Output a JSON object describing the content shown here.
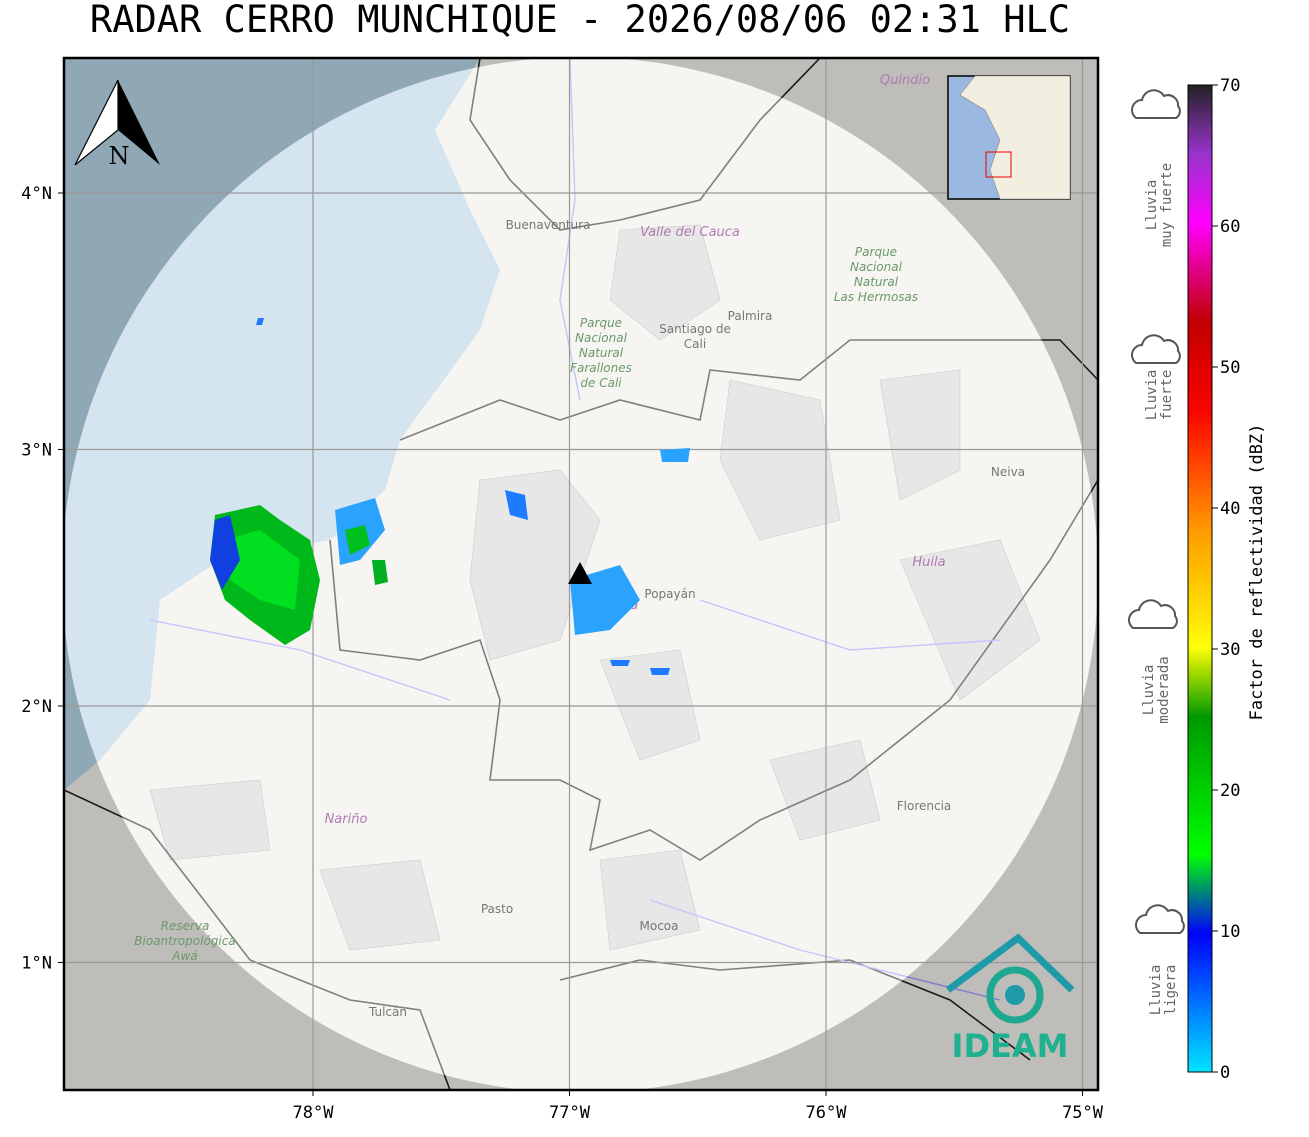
{
  "title": "RADAR CERRO MUNCHIQUE - 2026/08/06 02:31 HLC",
  "map": {
    "lon_ticks": [
      {
        "value": -78,
        "label": "78°W"
      },
      {
        "value": -77,
        "label": "77°W"
      },
      {
        "value": -76,
        "label": "76°W"
      },
      {
        "value": -75,
        "label": "75°W"
      }
    ],
    "lat_ticks": [
      {
        "value": 4,
        "label": "4°N"
      },
      {
        "value": 3,
        "label": "3°N"
      },
      {
        "value": 2,
        "label": "2°N"
      },
      {
        "value": 1,
        "label": "1°N"
      }
    ],
    "north_label": "N",
    "places": [
      {
        "kind": "place",
        "lines": [
          "Buenaventura"
        ]
      },
      {
        "kind": "dept",
        "lines": [
          "Valle del Cauca"
        ]
      },
      {
        "kind": "park",
        "lines": [
          "Parque",
          "Nacional",
          "Natural",
          "Farallones",
          "de Cali"
        ]
      },
      {
        "kind": "place",
        "lines": [
          "Santiago de",
          "Cali"
        ]
      },
      {
        "kind": "place",
        "lines": [
          "Palmira"
        ]
      },
      {
        "kind": "park",
        "lines": [
          "Parque",
          "Nacional",
          "Natural",
          "Las Hermosas"
        ]
      },
      {
        "kind": "dept",
        "lines": [
          "Quindío"
        ]
      },
      {
        "kind": "place",
        "lines": [
          "Neiva"
        ]
      },
      {
        "kind": "dept",
        "lines": [
          "Huila"
        ]
      },
      {
        "kind": "place",
        "lines": [
          "Popayán"
        ]
      },
      {
        "kind": "dept",
        "lines": [
          "Cauca"
        ]
      },
      {
        "kind": "dept",
        "lines": [
          "Nariño"
        ]
      },
      {
        "kind": "place",
        "lines": [
          "Pasto"
        ]
      },
      {
        "kind": "place",
        "lines": [
          "Mocoa"
        ]
      },
      {
        "kind": "place",
        "lines": [
          "Florencia"
        ]
      },
      {
        "kind": "place",
        "lines": [
          "Tulcán"
        ]
      },
      {
        "kind": "park",
        "lines": [
          "Reserva",
          "Bioantropológica",
          "Awá"
        ]
      }
    ],
    "logo": "IDEAM"
  },
  "colorbar": {
    "label": "Factor de reflectividad (dBZ)",
    "ticks": [
      0,
      10,
      20,
      30,
      40,
      50,
      60,
      70
    ]
  },
  "rain_levels": [
    {
      "lines": [
        "Lluvia",
        "muy fuerte"
      ]
    },
    {
      "lines": [
        "Lluvia",
        "fuerte"
      ]
    },
    {
      "lines": [
        "Lluvia",
        "moderada"
      ]
    },
    {
      "lines": [
        "Lluvia",
        "ligera"
      ]
    }
  ]
}
